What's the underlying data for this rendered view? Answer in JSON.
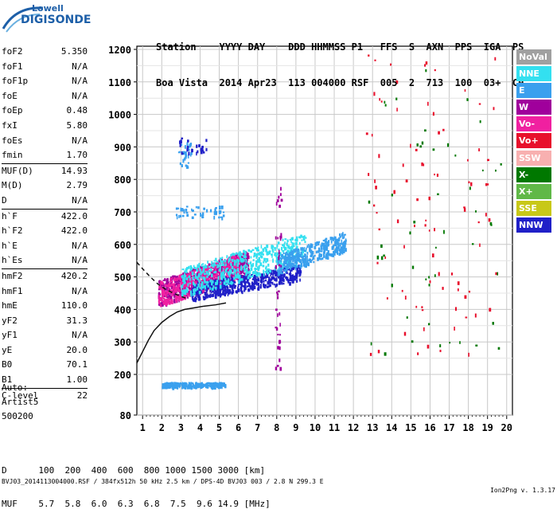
{
  "logo": {
    "line1": "Lowell",
    "line2": "DIGISONDE"
  },
  "header": {
    "line1": "Station    YYYY DAY    DDD HHMMSS P1   FFS  S  AXN  PPS  IGA  PS",
    "line2": "Boa Vista  2014 Apr23  113 004000 RSF  005  2  713  100  03+  C0"
  },
  "params": [
    {
      "label": "foF2",
      "value": "5.350"
    },
    {
      "label": "foF1",
      "value": "N/A"
    },
    {
      "label": "foF1p",
      "value": "N/A"
    },
    {
      "label": "foE",
      "value": "N/A"
    },
    {
      "label": "foEp",
      "value": "0.48"
    },
    {
      "label": "fxI",
      "value": "5.80"
    },
    {
      "label": "foEs",
      "value": "N/A"
    },
    {
      "label": "fmin",
      "value": "1.70"
    },
    {
      "label": "MUF(D)",
      "value": "14.93",
      "sep": true
    },
    {
      "label": "M(D)",
      "value": "2.79"
    },
    {
      "label": "D",
      "value": "N/A"
    },
    {
      "label": "h`F",
      "value": "422.0",
      "sep": true
    },
    {
      "label": "h`F2",
      "value": "422.0"
    },
    {
      "label": "h`E",
      "value": "N/A"
    },
    {
      "label": "h`Es",
      "value": "N/A"
    },
    {
      "label": "hmF2",
      "value": "420.2",
      "sep": true
    },
    {
      "label": "hmF1",
      "value": "N/A"
    },
    {
      "label": "hmE",
      "value": "110.0"
    },
    {
      "label": "yF2",
      "value": "31.3"
    },
    {
      "label": "yF1",
      "value": "N/A"
    },
    {
      "label": "yE",
      "value": "20.0"
    },
    {
      "label": "B0",
      "value": "70.1"
    },
    {
      "label": "B1",
      "value": "1.00"
    },
    {
      "label": "C-level",
      "value": "22",
      "sep": true
    }
  ],
  "auto": {
    "line1": "Auto:",
    "line2": "Artist5",
    "line3": "500200"
  },
  "legend": [
    {
      "label": "NoVal",
      "color": "#a0a0a0"
    },
    {
      "label": "NNE",
      "color": "#33e0f0"
    },
    {
      "label": "E",
      "color": "#3aa0ee"
    },
    {
      "label": "W",
      "color": "#a0009c"
    },
    {
      "label": "Vo-",
      "color": "#f020a0"
    },
    {
      "label": "Vo+",
      "color": "#e8102c"
    },
    {
      "label": "SSW",
      "color": "#f8b0b0"
    },
    {
      "label": "X-",
      "color": "#007800"
    },
    {
      "label": "X+",
      "color": "#60b848"
    },
    {
      "label": "SSE",
      "color": "#c8c818"
    },
    {
      "label": "NNW",
      "color": "#2020c8"
    }
  ],
  "bottom": {
    "line1": "D      100  200  400  600  800 1000 1500 3000 [km]",
    "line2": "MUF    5.7  5.8  6.0  6.3  6.8  7.5  9.6 14.9 [MHz]"
  },
  "footer": {
    "left": "BVJ03_2014113004000.RSF / 384fx512h 50 kHz 2.5 km / DPS-4D BVJ03 003 / 2.8 N 299.3 E",
    "right": "Ion2Png v. 1.3.17"
  },
  "chart_data": {
    "type": "scatter",
    "xlabel": "",
    "ylabel": "",
    "xlim": [
      0.7,
      20.3
    ],
    "ylim": [
      80,
      1200
    ],
    "x_ticks": [
      1,
      2,
      3,
      4,
      5,
      6,
      7,
      8,
      9,
      10,
      11,
      12,
      13,
      14,
      15,
      16,
      17,
      18,
      19,
      20
    ],
    "y_ticks": [
      80,
      200,
      300,
      400,
      500,
      600,
      700,
      800,
      900,
      1000,
      1100,
      1200
    ],
    "grid": true,
    "series": [
      {
        "name": "trace",
        "style": "solid",
        "x": [
          0.7,
          1.0,
          1.3,
          1.6,
          2.0,
          2.4,
          2.8,
          3.2,
          3.7,
          4.2,
          4.8,
          5.35
        ],
        "y": [
          235,
          270,
          305,
          335,
          360,
          378,
          392,
          400,
          405,
          410,
          414,
          420
        ]
      },
      {
        "name": "profile",
        "style": "dashed",
        "x": [
          0.7,
          1.0,
          1.4,
          1.8,
          2.2,
          2.6,
          3.0,
          3.4
        ],
        "y": [
          545,
          525,
          500,
          478,
          462,
          450,
          440,
          432
        ]
      }
    ],
    "clusters": [
      {
        "color": "#a0009c",
        "xr": [
          1.8,
          6.5
        ],
        "yr": [
          410,
          570
        ],
        "n": 700
      },
      {
        "color": "#f020a0",
        "xr": [
          1.8,
          6.0
        ],
        "yr": [
          410,
          560
        ],
        "n": 420
      },
      {
        "color": "#2020c8",
        "xr": [
          3.5,
          9.2
        ],
        "yr": [
          430,
          530
        ],
        "n": 520
      },
      {
        "color": "#33e0f0",
        "xr": [
          3.0,
          9.5
        ],
        "yr": [
          440,
          620
        ],
        "n": 520
      },
      {
        "color": "#3aa0ee",
        "xr": [
          8.0,
          11.6
        ],
        "yr": [
          510,
          630
        ],
        "n": 380
      },
      {
        "color": "#3aa0ee",
        "xr": [
          2.8,
          3.5
        ],
        "yr": [
          840,
          920
        ],
        "n": 30
      },
      {
        "color": "#2020c8",
        "xr": [
          2.9,
          4.3
        ],
        "yr": [
          880,
          930
        ],
        "n": 25
      },
      {
        "color": "#3aa0ee",
        "xr": [
          2.7,
          5.2
        ],
        "yr": [
          685,
          720
        ],
        "n": 45
      },
      {
        "color": "#3aa0ee",
        "xr": [
          2.0,
          5.3
        ],
        "yr": [
          165,
          178
        ],
        "n": 260
      },
      {
        "color": "#e8102c",
        "xr": [
          12.5,
          19.5
        ],
        "yr": [
          250,
          1200
        ],
        "n": 90
      },
      {
        "color": "#007800",
        "xr": [
          12.5,
          19.8
        ],
        "yr": [
          250,
          1200
        ],
        "n": 50
      },
      {
        "color": "#a0009c",
        "xr": [
          7.9,
          8.2
        ],
        "yr": [
          200,
          780
        ],
        "n": 40
      }
    ]
  }
}
